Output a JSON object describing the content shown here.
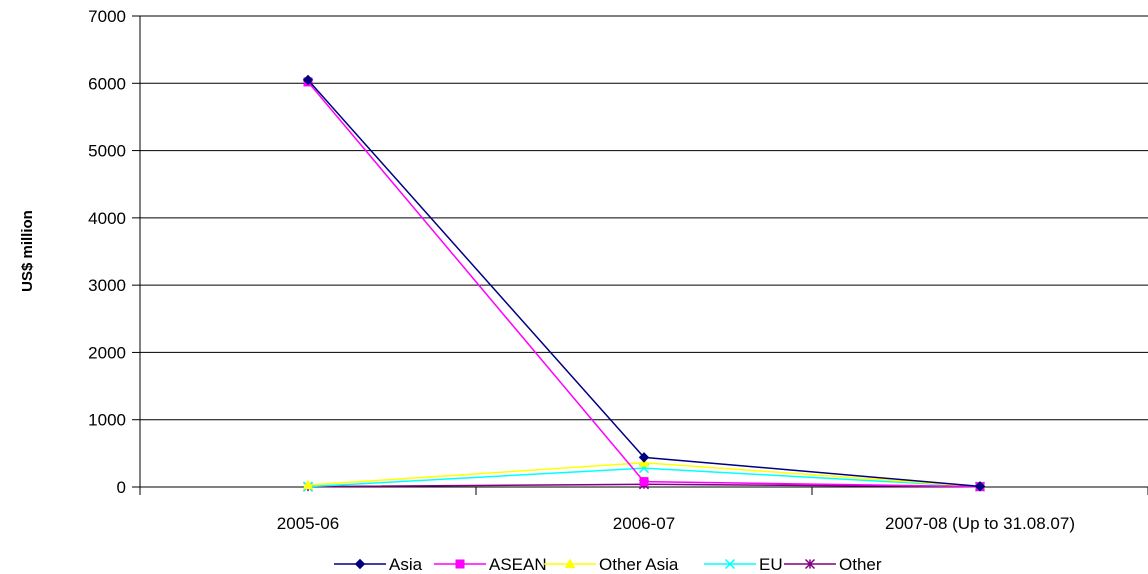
{
  "chart_data": {
    "type": "line",
    "title": "",
    "xlabel": "",
    "ylabel": "US$ million",
    "categories": [
      "2005-06",
      "2006-07",
      "2007-08 (Up to 31.08.07)"
    ],
    "ylim": [
      0,
      7000
    ],
    "yticks": [
      0,
      1000,
      2000,
      3000,
      4000,
      5000,
      6000,
      7000
    ],
    "grid": true,
    "legend_position": "bottom",
    "series": [
      {
        "name": "Asia",
        "values": [
          6050,
          440,
          10
        ],
        "color": "#000080",
        "marker": "diamond"
      },
      {
        "name": "ASEAN",
        "values": [
          6020,
          80,
          5
        ],
        "color": "#ff00ff",
        "marker": "square"
      },
      {
        "name": "Other Asia",
        "values": [
          30,
          360,
          5
        ],
        "color": "#ffff00",
        "marker": "triangle"
      },
      {
        "name": "EU",
        "values": [
          5,
          280,
          5
        ],
        "color": "#00ffff",
        "marker": "x"
      },
      {
        "name": "Other",
        "values": [
          5,
          40,
          5
        ],
        "color": "#800080",
        "marker": "star"
      }
    ]
  }
}
